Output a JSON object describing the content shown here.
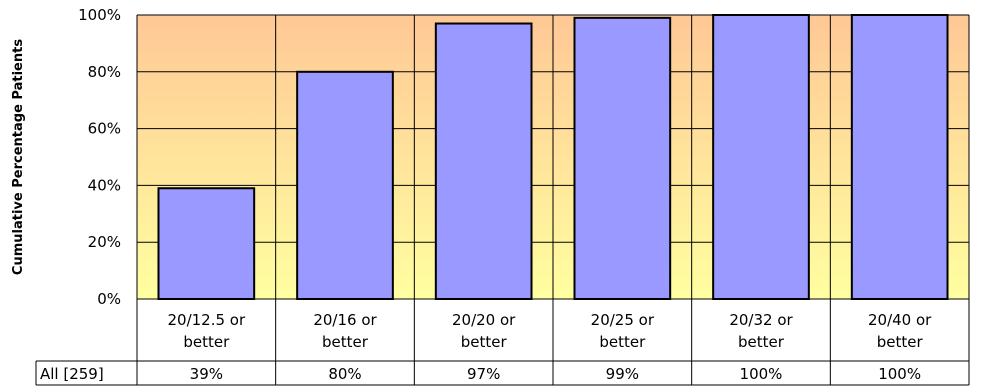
{
  "chart_data": {
    "type": "bar",
    "title": "",
    "xlabel": "",
    "ylabel": "Cumulative Percentage Patients",
    "ylim": [
      0,
      100
    ],
    "yticks": [
      0,
      20,
      40,
      60,
      80,
      100
    ],
    "ytick_labels": [
      "0%",
      "20%",
      "40%",
      "60%",
      "80%",
      "100%"
    ],
    "grid": true,
    "categories": [
      [
        "20/12.5 or",
        "better"
      ],
      [
        "20/16 or",
        "better"
      ],
      [
        "20/20 or",
        "better"
      ],
      [
        "20/25 or",
        "better"
      ],
      [
        "20/32 or",
        "better"
      ],
      [
        "20/40 or",
        "better"
      ]
    ],
    "series": [
      {
        "name": "All [259]",
        "values": [
          39,
          80,
          97,
          99,
          100,
          100
        ],
        "value_labels": [
          "39%",
          "80%",
          "97%",
          "99%",
          "100%",
          "100%"
        ]
      }
    ],
    "colors": {
      "bar_fill": "#9999FF",
      "bar_stroke": "#000000",
      "plot_top": "#FFC896",
      "plot_bottom": "#FFFFA0"
    }
  }
}
